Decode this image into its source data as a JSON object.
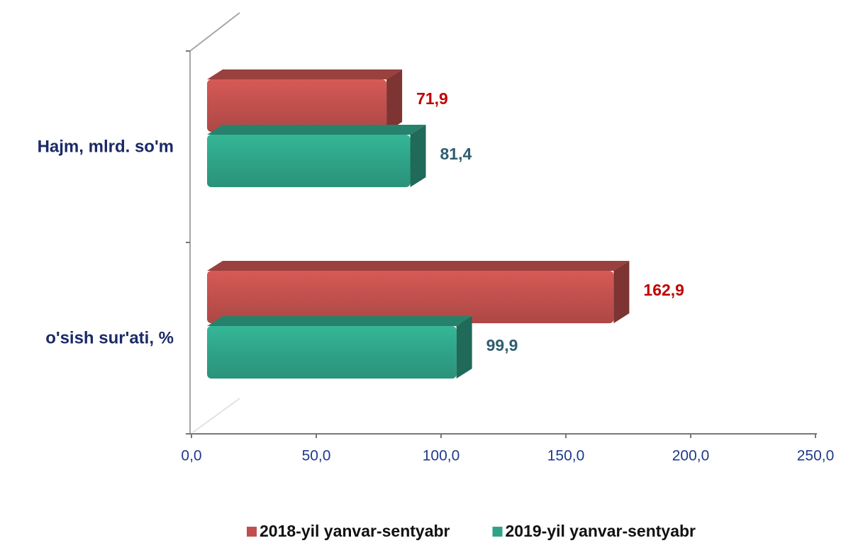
{
  "chart_data": {
    "type": "bar",
    "orientation": "horizontal",
    "categories": [
      "Hajm, mlrd. so'm",
      "o'sish  sur'ati, %"
    ],
    "series": [
      {
        "name": "2018-yil yanvar-sentyabr",
        "color": "#c0504d",
        "label_color": "#c00000",
        "values": [
          71.9,
          162.9
        ],
        "value_labels": [
          "71,9",
          "162,9"
        ]
      },
      {
        "name": "2019-yil yanvar-sentyabr",
        "color": "#2fa387",
        "label_color": "#2f5f6e",
        "values": [
          81.4,
          99.9
        ],
        "value_labels": [
          "81,4",
          "99,9"
        ]
      }
    ],
    "xlim": [
      0,
      250
    ],
    "xticks": [
      {
        "value": 0,
        "label": "0,0"
      },
      {
        "value": 50,
        "label": "50,0"
      },
      {
        "value": 100,
        "label": "100,0"
      },
      {
        "value": 150,
        "label": "150,0"
      },
      {
        "value": 200,
        "label": "200,0"
      },
      {
        "value": 250,
        "label": "250,0"
      }
    ],
    "legend": "bottom"
  }
}
